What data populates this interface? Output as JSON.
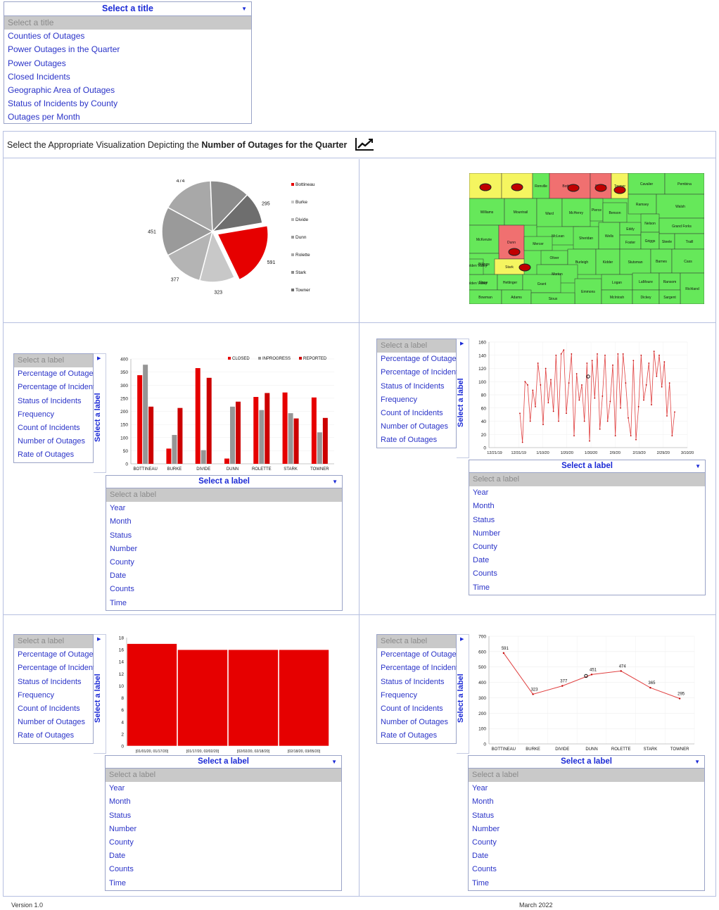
{
  "title_dropdown": {
    "header": "Select a title",
    "items": [
      "Select a title",
      "Counties of Outages",
      "Power Outages in the Quarter",
      "Power Outages",
      "Closed Incidents",
      "Geographic Area of Outages",
      "Status of Incidents by County",
      "Outages per Month"
    ]
  },
  "prompt": {
    "prefix": "Select the Appropriate Visualization Depicting the ",
    "emphasis": "Number of Outages for the Quarter"
  },
  "label_lists": {
    "left_items": [
      "Select a label",
      "Percentage of Outages",
      "Percentage of Incidents",
      "Status of Incidents",
      "Frequency",
      "Count of Incidents",
      "Number of Outages",
      "Rate of Outages"
    ],
    "side_label": "Select a label",
    "bottom_header": "Select a label",
    "bottom_items": [
      "Select a label",
      "Year",
      "Month",
      "Status",
      "Number",
      "County",
      "Date",
      "Counts",
      "Time"
    ]
  },
  "colors": {
    "accent_red": "#e60000",
    "link_blue": "#2b34c8",
    "header_blue": "#1b2ad6",
    "map_green": "#66e85a",
    "map_red": "#f07070",
    "map_yellow": "#f5f560"
  },
  "chart_data": [
    {
      "type": "pie",
      "categories": [
        "Bottineau",
        "Burke",
        "Divide",
        "Dunn",
        "Rolette",
        "Stark",
        "Towner"
      ],
      "values": [
        591,
        323,
        377,
        451,
        474,
        365,
        295
      ],
      "highlight": "Bottineau",
      "legend": "right"
    },
    {
      "type": "bar",
      "categories": [
        "BOTTINEAU",
        "BURKE",
        "DIVIDE",
        "DUNN",
        "ROLETTE",
        "STARK",
        "TOWNER"
      ],
      "series": [
        {
          "name": "CLOSED",
          "values": [
            338,
            58,
            365,
            20,
            255,
            272,
            253
          ]
        },
        {
          "name": "INPROGRESS",
          "values": [
            378,
            110,
            52,
            218,
            205,
            193,
            120
          ]
        },
        {
          "name": "REPORTED",
          "values": [
            218,
            213,
            328,
            237,
            270,
            173,
            175
          ]
        }
      ],
      "ylim": [
        0,
        400
      ],
      "yticks": [
        0,
        50,
        100,
        150,
        200,
        250,
        300,
        350,
        400
      ],
      "legend": "top-right"
    },
    {
      "type": "line",
      "xticks": [
        "12/21/19",
        "12/31/19",
        "1/10/20",
        "1/20/20",
        "1/30/20",
        "2/9/20",
        "2/19/20",
        "2/29/20",
        "3/10/20"
      ],
      "values": [
        52,
        8,
        100,
        95,
        40,
        87,
        62,
        128,
        95,
        35,
        120,
        68,
        103,
        55,
        140,
        40,
        142,
        148,
        52,
        98,
        142,
        18,
        112,
        72,
        95,
        40,
        128,
        10,
        132,
        75,
        142,
        28,
        78,
        140,
        40,
        70,
        125,
        18,
        142,
        60,
        142,
        98,
        45,
        18,
        132,
        12,
        62,
        140,
        72,
        95,
        128,
        65,
        146,
        108,
        140,
        92,
        130,
        48,
        98,
        18,
        54
      ],
      "ylim": [
        0,
        160
      ],
      "yticks": [
        0,
        20,
        40,
        60,
        80,
        100,
        120,
        140,
        160
      ]
    },
    {
      "type": "bar",
      "categories": [
        "[01/01/20, 01/17/20]",
        "[01/17/20, 02/02/20]",
        "[02/02/20, 02/18/20]",
        "[02/18/20, 03/05/20]"
      ],
      "values": [
        17,
        16,
        16,
        16
      ],
      "ylim": [
        0,
        18
      ],
      "yticks": [
        0,
        2,
        4,
        6,
        8,
        10,
        12,
        14,
        16,
        18
      ]
    },
    {
      "type": "line",
      "categories": [
        "BOTTINEAU",
        "BURKE",
        "DIVIDE",
        "DUNN",
        "ROLETTE",
        "STARK",
        "TOWNER"
      ],
      "values": [
        591,
        323,
        377,
        451,
        474,
        365,
        295
      ],
      "ylim": [
        0,
        700
      ],
      "yticks": [
        0,
        100,
        200,
        300,
        400,
        500,
        600,
        700
      ]
    }
  ],
  "map": {
    "counties": [
      "Divide",
      "Burke",
      "Renville",
      "Bottineau",
      "Rolette",
      "Towner",
      "Cavalier",
      "Pembina",
      "Williams",
      "Mountrail",
      "Ward",
      "McHenry",
      "Pierce",
      "Benson",
      "Ramsey",
      "Walsh",
      "McKenzie",
      "Nelson",
      "Grand Forks",
      "McLean",
      "Sheridan",
      "Wells",
      "Eddy",
      "Foster",
      "Griggs",
      "Steele",
      "Traill",
      "Dunn",
      "Mercer",
      "Billings",
      "Oliver",
      "Burleigh",
      "Kidder",
      "Stutsman",
      "Barnes",
      "Cass",
      "Golden Valley",
      "Stark",
      "Morton",
      "Slope",
      "Hettinger",
      "Grant",
      "Emmons",
      "Logan",
      "LaMoure",
      "Ransom",
      "Richland",
      "Bowman",
      "Adams",
      "Sioux",
      "McIntosh",
      "Dickey",
      "Sargent"
    ]
  },
  "footer": {
    "version": "Version 1.0",
    "date": "March 2022"
  }
}
